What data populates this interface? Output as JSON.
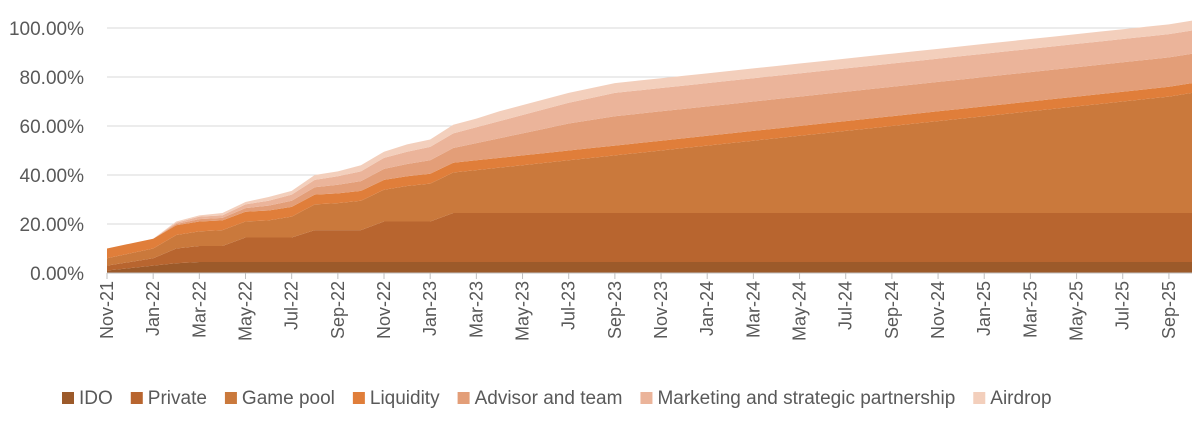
{
  "chart_data": {
    "type": "area",
    "stacked": true,
    "title": "",
    "xlabel": "",
    "ylabel": "",
    "ylim": [
      0,
      100
    ],
    "yticks": [
      "0.00%",
      "20.00%",
      "40.00%",
      "60.00%",
      "80.00%",
      "100.00%"
    ],
    "ytick_values": [
      0,
      20,
      40,
      60,
      80,
      100
    ],
    "x": [
      "Nov-21",
      "Dec-21",
      "Jan-22",
      "Feb-22",
      "Mar-22",
      "Apr-22",
      "May-22",
      "Jun-22",
      "Jul-22",
      "Aug-22",
      "Sep-22",
      "Oct-22",
      "Nov-22",
      "Dec-22",
      "Jan-23",
      "Feb-23",
      "Mar-23",
      "Apr-23",
      "May-23",
      "Jun-23",
      "Jul-23",
      "Aug-23",
      "Sep-23",
      "Oct-23",
      "Nov-23",
      "Dec-23",
      "Jan-24",
      "Feb-24",
      "Mar-24",
      "Apr-24",
      "May-24",
      "Jun-24",
      "Jul-24",
      "Aug-24",
      "Sep-24",
      "Oct-24",
      "Nov-24",
      "Dec-24",
      "Jan-25",
      "Feb-25",
      "Mar-25",
      "Apr-25",
      "May-25",
      "Jun-25",
      "Jul-25",
      "Aug-25",
      "Sep-25",
      "Oct-25"
    ],
    "x_tick_labels": [
      "Nov-21",
      "Jan-22",
      "Mar-22",
      "May-22",
      "Jul-22",
      "Sep-22",
      "Nov-22",
      "Jan-23",
      "Mar-23",
      "May-23",
      "Jul-23",
      "Sep-23",
      "Nov-23",
      "Jan-24",
      "Mar-24",
      "May-24",
      "Jul-24",
      "Sep-24",
      "Nov-24",
      "Jan-25",
      "Mar-25",
      "May-25",
      "Jul-25",
      "Sep-25"
    ],
    "legend_position": "bottom",
    "series": [
      {
        "name": "IDO",
        "color": "#9C5A2A",
        "values": [
          1,
          2,
          3,
          4,
          4.5,
          4.5,
          4.5,
          4.5,
          4.5,
          4.5,
          4.5,
          4.5,
          4.5,
          4.5,
          4.5,
          4.5,
          4.5,
          4.5,
          4.5,
          4.5,
          4.5,
          4.5,
          4.5,
          4.5,
          4.5,
          4.5,
          4.5,
          4.5,
          4.5,
          4.5,
          4.5,
          4.5,
          4.5,
          4.5,
          4.5,
          4.5,
          4.5,
          4.5,
          4.5,
          4.5,
          4.5,
          4.5,
          4.5,
          4.5,
          4.5,
          4.5,
          4.5,
          4.5
        ]
      },
      {
        "name": "Private",
        "color": "#B8652F",
        "values": [
          2,
          2.5,
          3,
          6,
          6.5,
          6.5,
          10,
          10,
          10,
          13,
          13,
          13,
          16.5,
          16.5,
          16.5,
          20,
          20,
          20,
          20,
          20,
          20,
          20,
          20,
          20,
          20,
          20,
          20,
          20,
          20,
          20,
          20,
          20,
          20,
          20,
          20,
          20,
          20,
          20,
          20,
          20,
          20,
          20,
          20,
          20,
          20,
          20,
          20,
          20
        ]
      },
      {
        "name": "Game pool",
        "color": "#CA793C",
        "values": [
          3,
          3.5,
          4,
          5.5,
          6,
          6.5,
          6.5,
          7,
          8.5,
          10.5,
          11,
          12,
          13,
          14.5,
          15.5,
          16.5,
          17.5,
          18.5,
          19.5,
          20.5,
          21.5,
          22.5,
          23.5,
          24.5,
          25.5,
          26.5,
          27.5,
          28.5,
          29.5,
          30.5,
          31.5,
          32.5,
          33.5,
          34.5,
          35.5,
          36.5,
          37.5,
          38.5,
          39.5,
          40.5,
          41.5,
          42.5,
          43.5,
          44.5,
          45.5,
          46.5,
          47.5,
          49
        ]
      },
      {
        "name": "Liquidity",
        "color": "#E07E3A",
        "values": [
          4,
          4,
          4,
          4,
          4,
          4,
          4,
          4,
          4,
          4,
          4,
          4,
          4,
          4,
          4,
          4,
          4,
          4,
          4,
          4,
          4,
          4,
          4,
          4,
          4,
          4,
          4,
          4,
          4,
          4,
          4,
          4,
          4,
          4,
          4,
          4,
          4,
          4,
          4,
          4,
          4,
          4,
          4,
          4,
          4,
          4,
          4,
          4
        ]
      },
      {
        "name": "Advisor and team",
        "color": "#E39E78",
        "values": [
          0,
          0,
          0,
          0.5,
          1,
          1,
          1.5,
          2,
          2.5,
          3,
          3.5,
          4,
          4.5,
          5,
          5.5,
          6,
          7,
          8,
          9,
          10,
          11,
          11.5,
          12,
          12,
          12,
          12,
          12,
          12,
          12,
          12,
          12,
          12,
          12,
          12,
          12,
          12,
          12,
          12,
          12,
          12,
          12,
          12,
          12,
          12,
          12,
          12,
          12,
          12
        ]
      },
      {
        "name": "Marketing and strategic partnership",
        "color": "#EBB49A",
        "values": [
          0,
          0,
          0,
          0.5,
          1,
          1,
          1.5,
          2,
          2.5,
          3,
          3.5,
          4,
          4.5,
          5,
          5.5,
          6,
          6.5,
          7,
          7.5,
          8,
          8.5,
          9,
          9.5,
          9.5,
          9.5,
          9.5,
          9.5,
          9.5,
          9.5,
          9.5,
          9.5,
          9.5,
          9.5,
          9.5,
          9.5,
          9.5,
          9.5,
          9.5,
          9.5,
          9.5,
          9.5,
          9.5,
          9.5,
          9.5,
          9.5,
          9.5,
          9.5,
          9.5
        ]
      },
      {
        "name": "Airdrop",
        "color": "#F3CFBC",
        "values": [
          0,
          0,
          0,
          0.5,
          0.5,
          1,
          1,
          1.5,
          1.5,
          2,
          2,
          2.5,
          2.5,
          3,
          3,
          3.5,
          3.5,
          4,
          4,
          4,
          4,
          4,
          4,
          4,
          4,
          4,
          4,
          4,
          4,
          4,
          4,
          4,
          4,
          4,
          4,
          4,
          4,
          4,
          4,
          4,
          4,
          4,
          4,
          4,
          4,
          4,
          4,
          4
        ]
      }
    ]
  }
}
